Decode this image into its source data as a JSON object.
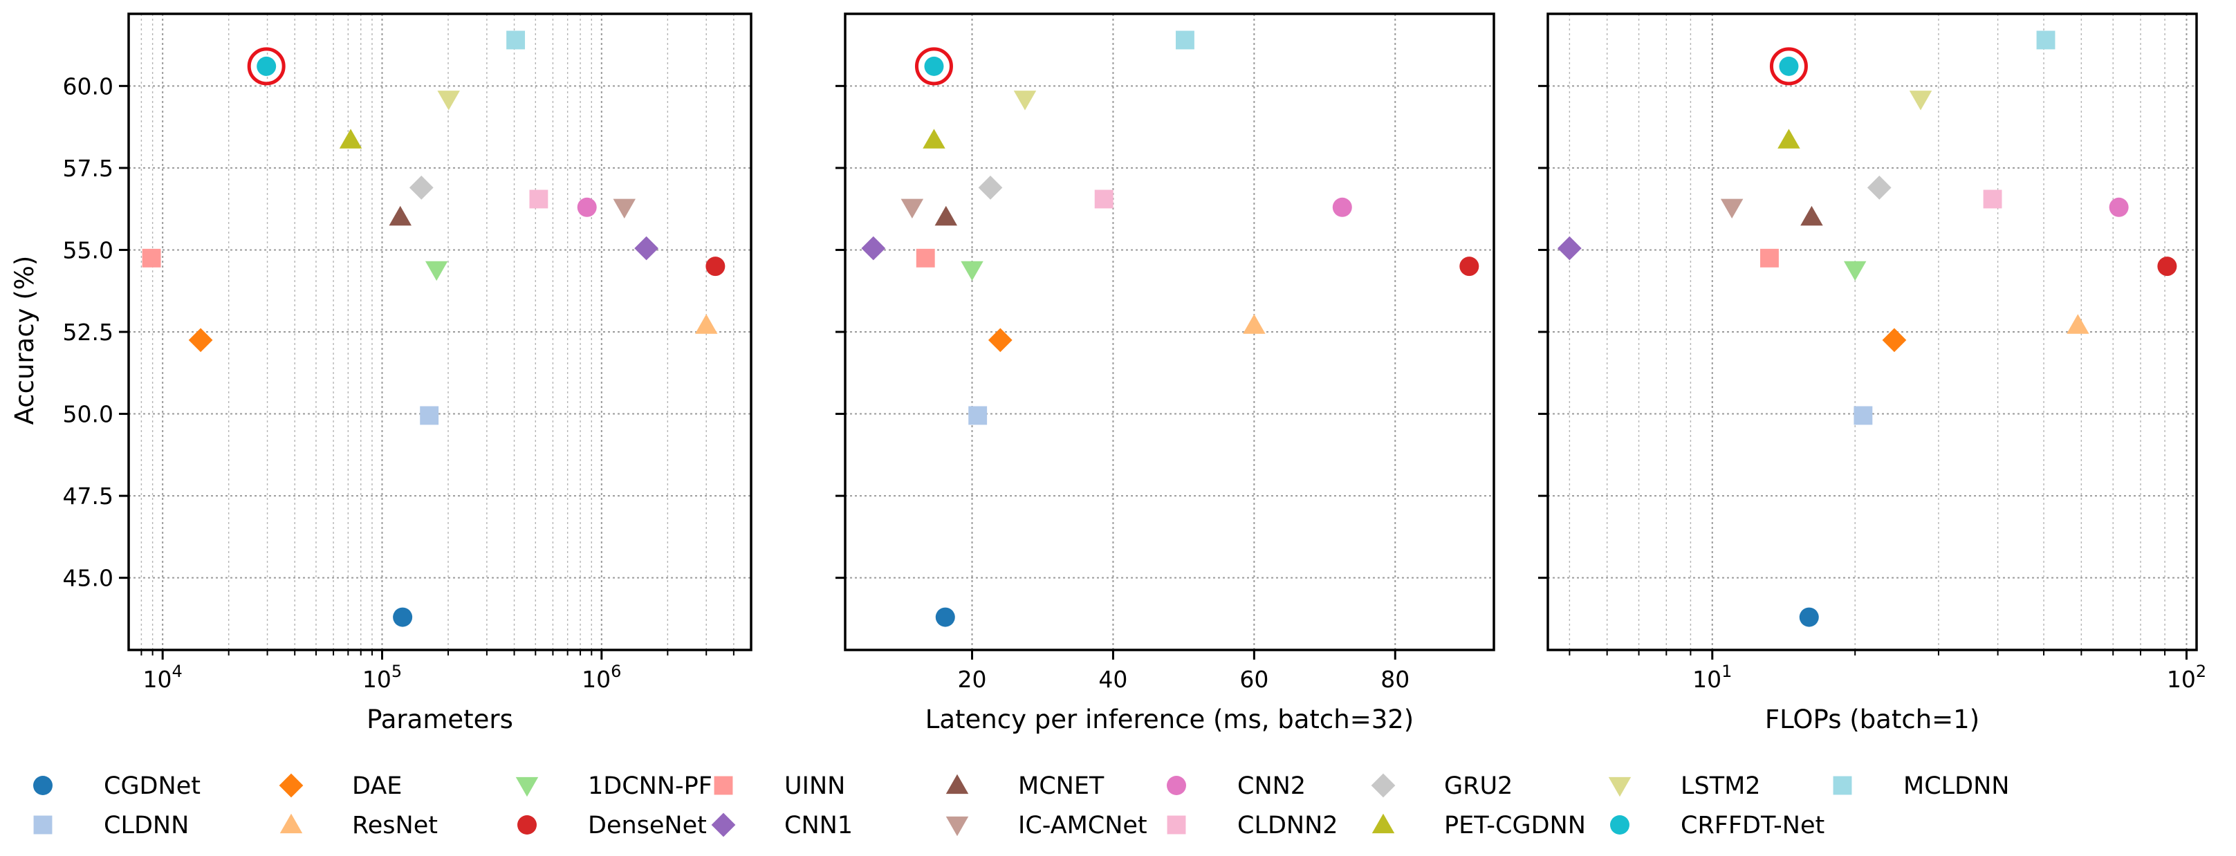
{
  "chart_data": {
    "type": "scatter",
    "ylabel": "Accuracy (%)",
    "ylim": [
      42.8,
      62.2
    ],
    "yticks": [
      45.0,
      47.5,
      50.0,
      52.5,
      55.0,
      57.5,
      60.0
    ],
    "ytick_labels": [
      "45.0",
      "47.5",
      "50.0",
      "52.5",
      "55.0",
      "57.5",
      "60.0"
    ],
    "grid": true,
    "legend_position": "bottom",
    "highlighted": "CRFFDT-Net",
    "panels": [
      {
        "name": "parameters",
        "xlabel": "Parameters",
        "xscale": "log",
        "xlim": [
          7000,
          4800000
        ],
        "xticks": [
          10000,
          100000,
          1000000
        ],
        "xtick_labels": [
          {
            "base": "10",
            "exp": "4"
          },
          {
            "base": "10",
            "exp": "5"
          },
          {
            "base": "10",
            "exp": "6"
          }
        ]
      },
      {
        "name": "latency",
        "xlabel": "Latency per inference (ms, batch=32)",
        "xscale": "linear",
        "xlim": [
          2,
          94
        ],
        "xticks": [
          20,
          40,
          60,
          80
        ],
        "xtick_labels": [
          {
            "base": "20",
            "exp": ""
          },
          {
            "base": "40",
            "exp": ""
          },
          {
            "base": "60",
            "exp": ""
          },
          {
            "base": "80",
            "exp": ""
          }
        ]
      },
      {
        "name": "flops",
        "xlabel": "FLOPs (batch=1)",
        "xscale": "log",
        "xlim": [
          4.5,
          105
        ],
        "xticks": [
          10,
          100
        ],
        "xtick_labels": [
          {
            "base": "10",
            "exp": "1"
          },
          {
            "base": "10",
            "exp": "2"
          }
        ]
      }
    ],
    "series": [
      {
        "name": "CGDNet",
        "color": "#1f77b4",
        "marker": "circle",
        "parameters": 124000,
        "latency": 16.2,
        "flops": 16.0,
        "accuracy": 43.8
      },
      {
        "name": "CLDNN",
        "color": "#aec7e8",
        "marker": "square",
        "parameters": 164000,
        "latency": 20.8,
        "flops": 20.8,
        "accuracy": 49.95
      },
      {
        "name": "DAE",
        "color": "#ff7f0e",
        "marker": "diamond",
        "parameters": 14900,
        "latency": 24.0,
        "flops": 24.2,
        "accuracy": 52.25
      },
      {
        "name": "ResNet",
        "color": "#ffbb78",
        "marker": "triangle-up",
        "parameters": 3000000,
        "latency": 60.0,
        "flops": 59.0,
        "accuracy": 52.7
      },
      {
        "name": "1DCNN-PF",
        "color": "#98df8a",
        "marker": "triangle-down",
        "parameters": 177000,
        "latency": 20.0,
        "flops": 20.0,
        "accuracy": 54.4
      },
      {
        "name": "DenseNet",
        "color": "#d62728",
        "marker": "circle",
        "parameters": 3300000,
        "latency": 90.5,
        "flops": 91.0,
        "accuracy": 54.5
      },
      {
        "name": "UINN",
        "color": "#ff9896",
        "marker": "square",
        "parameters": 8900,
        "latency": 13.4,
        "flops": 13.2,
        "accuracy": 54.75
      },
      {
        "name": "CNN1",
        "color": "#9467bd",
        "marker": "diamond",
        "parameters": 1600000,
        "latency": 6.0,
        "flops": 5.0,
        "accuracy": 55.05
      },
      {
        "name": "MCNET",
        "color": "#8c564b",
        "marker": "triangle-up",
        "parameters": 121000,
        "latency": 16.3,
        "flops": 16.2,
        "accuracy": 56.0
      },
      {
        "name": "IC-AMCNet",
        "color": "#c49c94",
        "marker": "triangle-down",
        "parameters": 1270000,
        "latency": 11.5,
        "flops": 11.0,
        "accuracy": 56.3
      },
      {
        "name": "CNN2",
        "color": "#e377c2",
        "marker": "circle",
        "parameters": 858000,
        "latency": 72.5,
        "flops": 72.0,
        "accuracy": 56.3
      },
      {
        "name": "CLDNN2",
        "color": "#f7b6d2",
        "marker": "square",
        "parameters": 517000,
        "latency": 38.7,
        "flops": 39.0,
        "accuracy": 56.55
      },
      {
        "name": "GRU2",
        "color": "#c7c7c7",
        "marker": "diamond",
        "parameters": 151000,
        "latency": 22.6,
        "flops": 22.5,
        "accuracy": 56.9
      },
      {
        "name": "PET-CGDNN",
        "color": "#bcbd22",
        "marker": "triangle-up",
        "parameters": 71900,
        "latency": 14.6,
        "flops": 14.5,
        "accuracy": 58.35
      },
      {
        "name": "LSTM2",
        "color": "#dbdb8d",
        "marker": "triangle-down",
        "parameters": 201000,
        "latency": 27.5,
        "flops": 27.5,
        "accuracy": 59.6
      },
      {
        "name": "CRFFDT-Net",
        "color": "#17becf",
        "marker": "circle",
        "parameters": 29700,
        "latency": 14.6,
        "flops": 14.5,
        "accuracy": 60.6
      },
      {
        "name": "MCLDNN",
        "color": "#9edae5",
        "marker": "square",
        "parameters": 406000,
        "latency": 50.2,
        "flops": 50.5,
        "accuracy": 61.4
      }
    ]
  }
}
